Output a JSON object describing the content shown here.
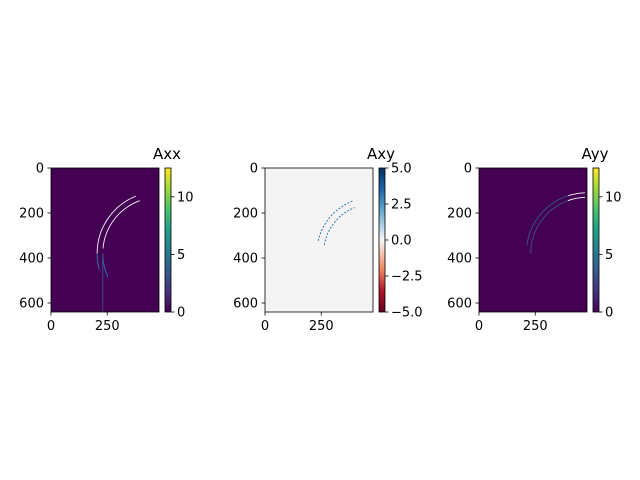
{
  "chart_data": [
    {
      "type": "heatmap",
      "title": "Axx",
      "colormap": "viridis",
      "background_color": "#440154",
      "xlim": [
        0,
        480
      ],
      "ylim": [
        640,
        0
      ],
      "x_ticks": [
        0,
        250
      ],
      "x_tick_labels": [
        "0",
        "250"
      ],
      "y_ticks": [
        0,
        200,
        400,
        600
      ],
      "y_tick_labels": [
        "0",
        "200",
        "400",
        "600"
      ],
      "colorbar": {
        "min": 0,
        "max": 12.5,
        "ticks": [
          0,
          5,
          10
        ],
        "tick_labels": [
          "0",
          "5",
          "10"
        ]
      },
      "features": [
        {
          "kind": "arc",
          "cx": 480,
          "cy": 380,
          "r": 250,
          "from_deg": 155,
          "to_deg": 180,
          "color": "#2b7bba"
        },
        {
          "kind": "arc",
          "cx": 480,
          "cy": 380,
          "r": 275,
          "from_deg": 165,
          "to_deg": 180,
          "color": "#2b7bba"
        },
        {
          "kind": "arc",
          "cx": 480,
          "cy": 380,
          "r": 250,
          "from_deg": 185,
          "to_deg": 250,
          "color": "#f7f7f7"
        },
        {
          "kind": "arc",
          "cx": 480,
          "cy": 380,
          "r": 275,
          "from_deg": 180,
          "to_deg": 248,
          "color": "#f7f7f7"
        },
        {
          "kind": "vline",
          "x": 230,
          "y_from": 380,
          "y_to": 640,
          "color": "#3b528b"
        }
      ]
    },
    {
      "type": "heatmap",
      "title": "Axy",
      "colormap": "RdBu",
      "background_color": "#f4f4f4",
      "xlim": [
        0,
        480
      ],
      "ylim": [
        640,
        0
      ],
      "x_ticks": [
        0,
        250
      ],
      "x_tick_labels": [
        "0",
        "250"
      ],
      "y_ticks": [
        0,
        200,
        400,
        600
      ],
      "y_tick_labels": [
        "0",
        "200",
        "400",
        "600"
      ],
      "colorbar": {
        "min": -5.0,
        "max": 5.0,
        "ticks": [
          -5.0,
          -2.5,
          0.0,
          2.5,
          5.0
        ],
        "tick_labels": [
          "−5.0",
          "−2.5",
          "0.0",
          "2.5",
          "5.0"
        ]
      },
      "features": [
        {
          "kind": "arc",
          "cx": 480,
          "cy": 380,
          "r": 220,
          "from_deg": 190,
          "to_deg": 248,
          "color": "#2166ac",
          "dashed": true
        },
        {
          "kind": "arc",
          "cx": 480,
          "cy": 380,
          "r": 250,
          "from_deg": 193,
          "to_deg": 250,
          "color": "#2166ac",
          "dashed": true
        }
      ]
    },
    {
      "type": "heatmap",
      "title": "Ayy",
      "colormap": "viridis",
      "background_color": "#440154",
      "xlim": [
        0,
        480
      ],
      "ylim": [
        640,
        0
      ],
      "x_ticks": [
        0,
        250
      ],
      "x_tick_labels": [
        "0",
        "250"
      ],
      "y_ticks": [
        0,
        200,
        400,
        600
      ],
      "y_tick_labels": [
        "0",
        "200",
        "400",
        "600"
      ],
      "colorbar": {
        "min": 0,
        "max": 12.5,
        "ticks": [
          0,
          5,
          10
        ],
        "tick_labels": [
          "0",
          "5",
          "10"
        ]
      },
      "features": [
        {
          "kind": "arc",
          "cx": 480,
          "cy": 380,
          "r": 250,
          "from_deg": 250,
          "to_deg": 268,
          "color": "#f7f7f7"
        },
        {
          "kind": "arc",
          "cx": 480,
          "cy": 380,
          "r": 270,
          "from_deg": 252,
          "to_deg": 268,
          "color": "#f7f7f7"
        },
        {
          "kind": "arc",
          "cx": 480,
          "cy": 380,
          "r": 250,
          "from_deg": 180,
          "to_deg": 250,
          "color": "#3b528b"
        },
        {
          "kind": "arc",
          "cx": 480,
          "cy": 380,
          "r": 270,
          "from_deg": 188,
          "to_deg": 252,
          "color": "#3b528b"
        }
      ]
    }
  ]
}
